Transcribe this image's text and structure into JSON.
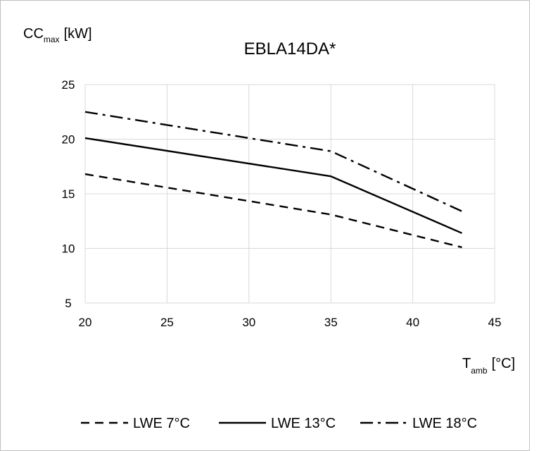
{
  "chart_data": {
    "type": "line",
    "title": "EBLA14DA*",
    "ylabel_main": "CC",
    "ylabel_sub": "max",
    "ylabel_unit": "[kW]",
    "xlabel_main": "T",
    "xlabel_sub": "amb",
    "xlabel_unit": "[°C]",
    "xlim": [
      20,
      45
    ],
    "ylim": [
      5,
      25
    ],
    "xticks": [
      20,
      25,
      30,
      35,
      40,
      45
    ],
    "yticks": [
      5,
      10,
      15,
      20,
      25
    ],
    "grid": true,
    "legend_position": "bottom",
    "series": [
      {
        "name": "LWE 7°C",
        "dash": "dashed",
        "x": [
          20,
          35,
          43
        ],
        "y": [
          16.8,
          13.1,
          10.1
        ]
      },
      {
        "name": "LWE 13°C",
        "dash": "solid",
        "x": [
          20,
          35,
          43
        ],
        "y": [
          20.1,
          16.6,
          11.4
        ]
      },
      {
        "name": "LWE 18°C",
        "dash": "dash-dot",
        "x": [
          20,
          35,
          43
        ],
        "y": [
          22.5,
          18.9,
          13.4
        ]
      }
    ]
  }
}
